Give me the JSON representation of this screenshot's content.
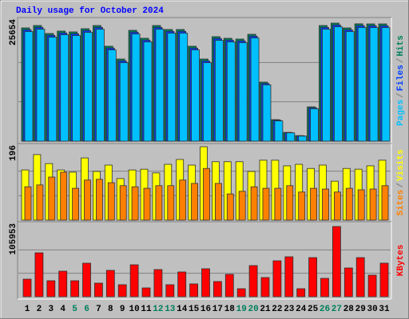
{
  "chart_data": {
    "type": "bar",
    "title": "Daily usage for October 2024",
    "categories": [
      "1",
      "2",
      "3",
      "4",
      "5",
      "6",
      "7",
      "8",
      "9",
      "10",
      "11",
      "12",
      "13",
      "14",
      "15",
      "16",
      "17",
      "18",
      "19",
      "20",
      "21",
      "22",
      "23",
      "24",
      "25",
      "26",
      "27",
      "28",
      "29",
      "30",
      "31"
    ],
    "category_colors": [
      "#000000",
      "#000000",
      "#000000",
      "#000000",
      "#00805c",
      "#00805c",
      "#000000",
      "#000000",
      "#000000",
      "#000000",
      "#000000",
      "#00805c",
      "#00805c",
      "#000000",
      "#000000",
      "#000000",
      "#000000",
      "#000000",
      "#00805c",
      "#00805c",
      "#000000",
      "#000000",
      "#000000",
      "#000000",
      "#000000",
      "#00805c",
      "#00805c",
      "#000000",
      "#000000",
      "#000000",
      "#000000"
    ],
    "legend_separator": "/",
    "panels": [
      {
        "ylim": [
          0,
          25654
        ],
        "yticks": [
          25654
        ],
        "grid_divisions": 3,
        "series": [
          {
            "name": "Hits",
            "color": "#00805c",
            "values": [
              24613,
              25134,
              23400,
              23920,
              23750,
              24440,
              25130,
              20630,
              17850,
              24090,
              22360,
              25130,
              24270,
              24270,
              20630,
              17850,
              22710,
              22360,
              22190,
              23230,
              12830,
              4680,
              1910,
              1210,
              7450,
              25130,
              25654,
              24610,
              25500,
              25480,
              25480
            ]
          },
          {
            "name": "Files",
            "color": "#0040ff",
            "values": [
              24213,
              24734,
              23000,
              23520,
              23350,
              24040,
              24730,
              20230,
              17450,
              23690,
              21960,
              24730,
              23870,
              23870,
              20230,
              17450,
              22310,
              21960,
              21790,
              22830,
              12530,
              4550,
              1850,
              1150,
              7250,
              24730,
              25254,
              24210,
              25100,
              25080,
              25080
            ]
          },
          {
            "name": "Pages",
            "color": "#00c0ff",
            "values": [
              23813,
              24334,
              22600,
              23120,
              22950,
              23640,
              24330,
              19830,
              17050,
              23290,
              21560,
              24330,
              23470,
              23470,
              19830,
              17050,
              21910,
              21560,
              21390,
              22430,
              12230,
              4400,
              1800,
              1100,
              7050,
              24330,
              24854,
              23810,
              24700,
              24680,
              24680
            ]
          }
        ]
      },
      {
        "ylim": [
          0,
          196
        ],
        "yticks": [
          196
        ],
        "grid_divisions": 3,
        "series": [
          {
            "name": "Visits",
            "color": "#ffff00",
            "values": [
              134,
              175,
              151,
              134,
              128,
              166,
              130,
              147,
              111,
              134,
              136,
              126,
              149,
              162,
              147,
              196,
              156,
              156,
              156,
              130,
              160,
              160,
              145,
              149,
              138,
              147,
              104,
              138,
              136,
              145,
              160
            ]
          },
          {
            "name": "Sites",
            "color": "#ff8000",
            "values": [
              89,
              94,
              115,
              128,
              85,
              107,
              109,
              100,
              92,
              89,
              85,
              92,
              92,
              107,
              98,
              138,
              98,
              70,
              77,
              89,
              85,
              85,
              92,
              75,
              85,
              83,
              75,
              85,
              81,
              83,
              92
            ]
          }
        ]
      },
      {
        "ylim": [
          0,
          105953
        ],
        "yticks": [
          105953
        ],
        "grid_divisions": 3,
        "series": [
          {
            "name": "KBytes",
            "color": "#ff0000",
            "values": [
              26490,
              66220,
              24080,
              38530,
              24080,
              50570,
              20470,
              39730,
              18060,
              48160,
              13240,
              40940,
              18060,
              37320,
              19260,
              42140,
              22880,
              33710,
              12040,
              46960,
              28900,
              54180,
              60200,
              12040,
              59000,
              27690,
              105953,
              43340,
              59000,
              32510,
              50570
            ]
          }
        ]
      }
    ]
  }
}
